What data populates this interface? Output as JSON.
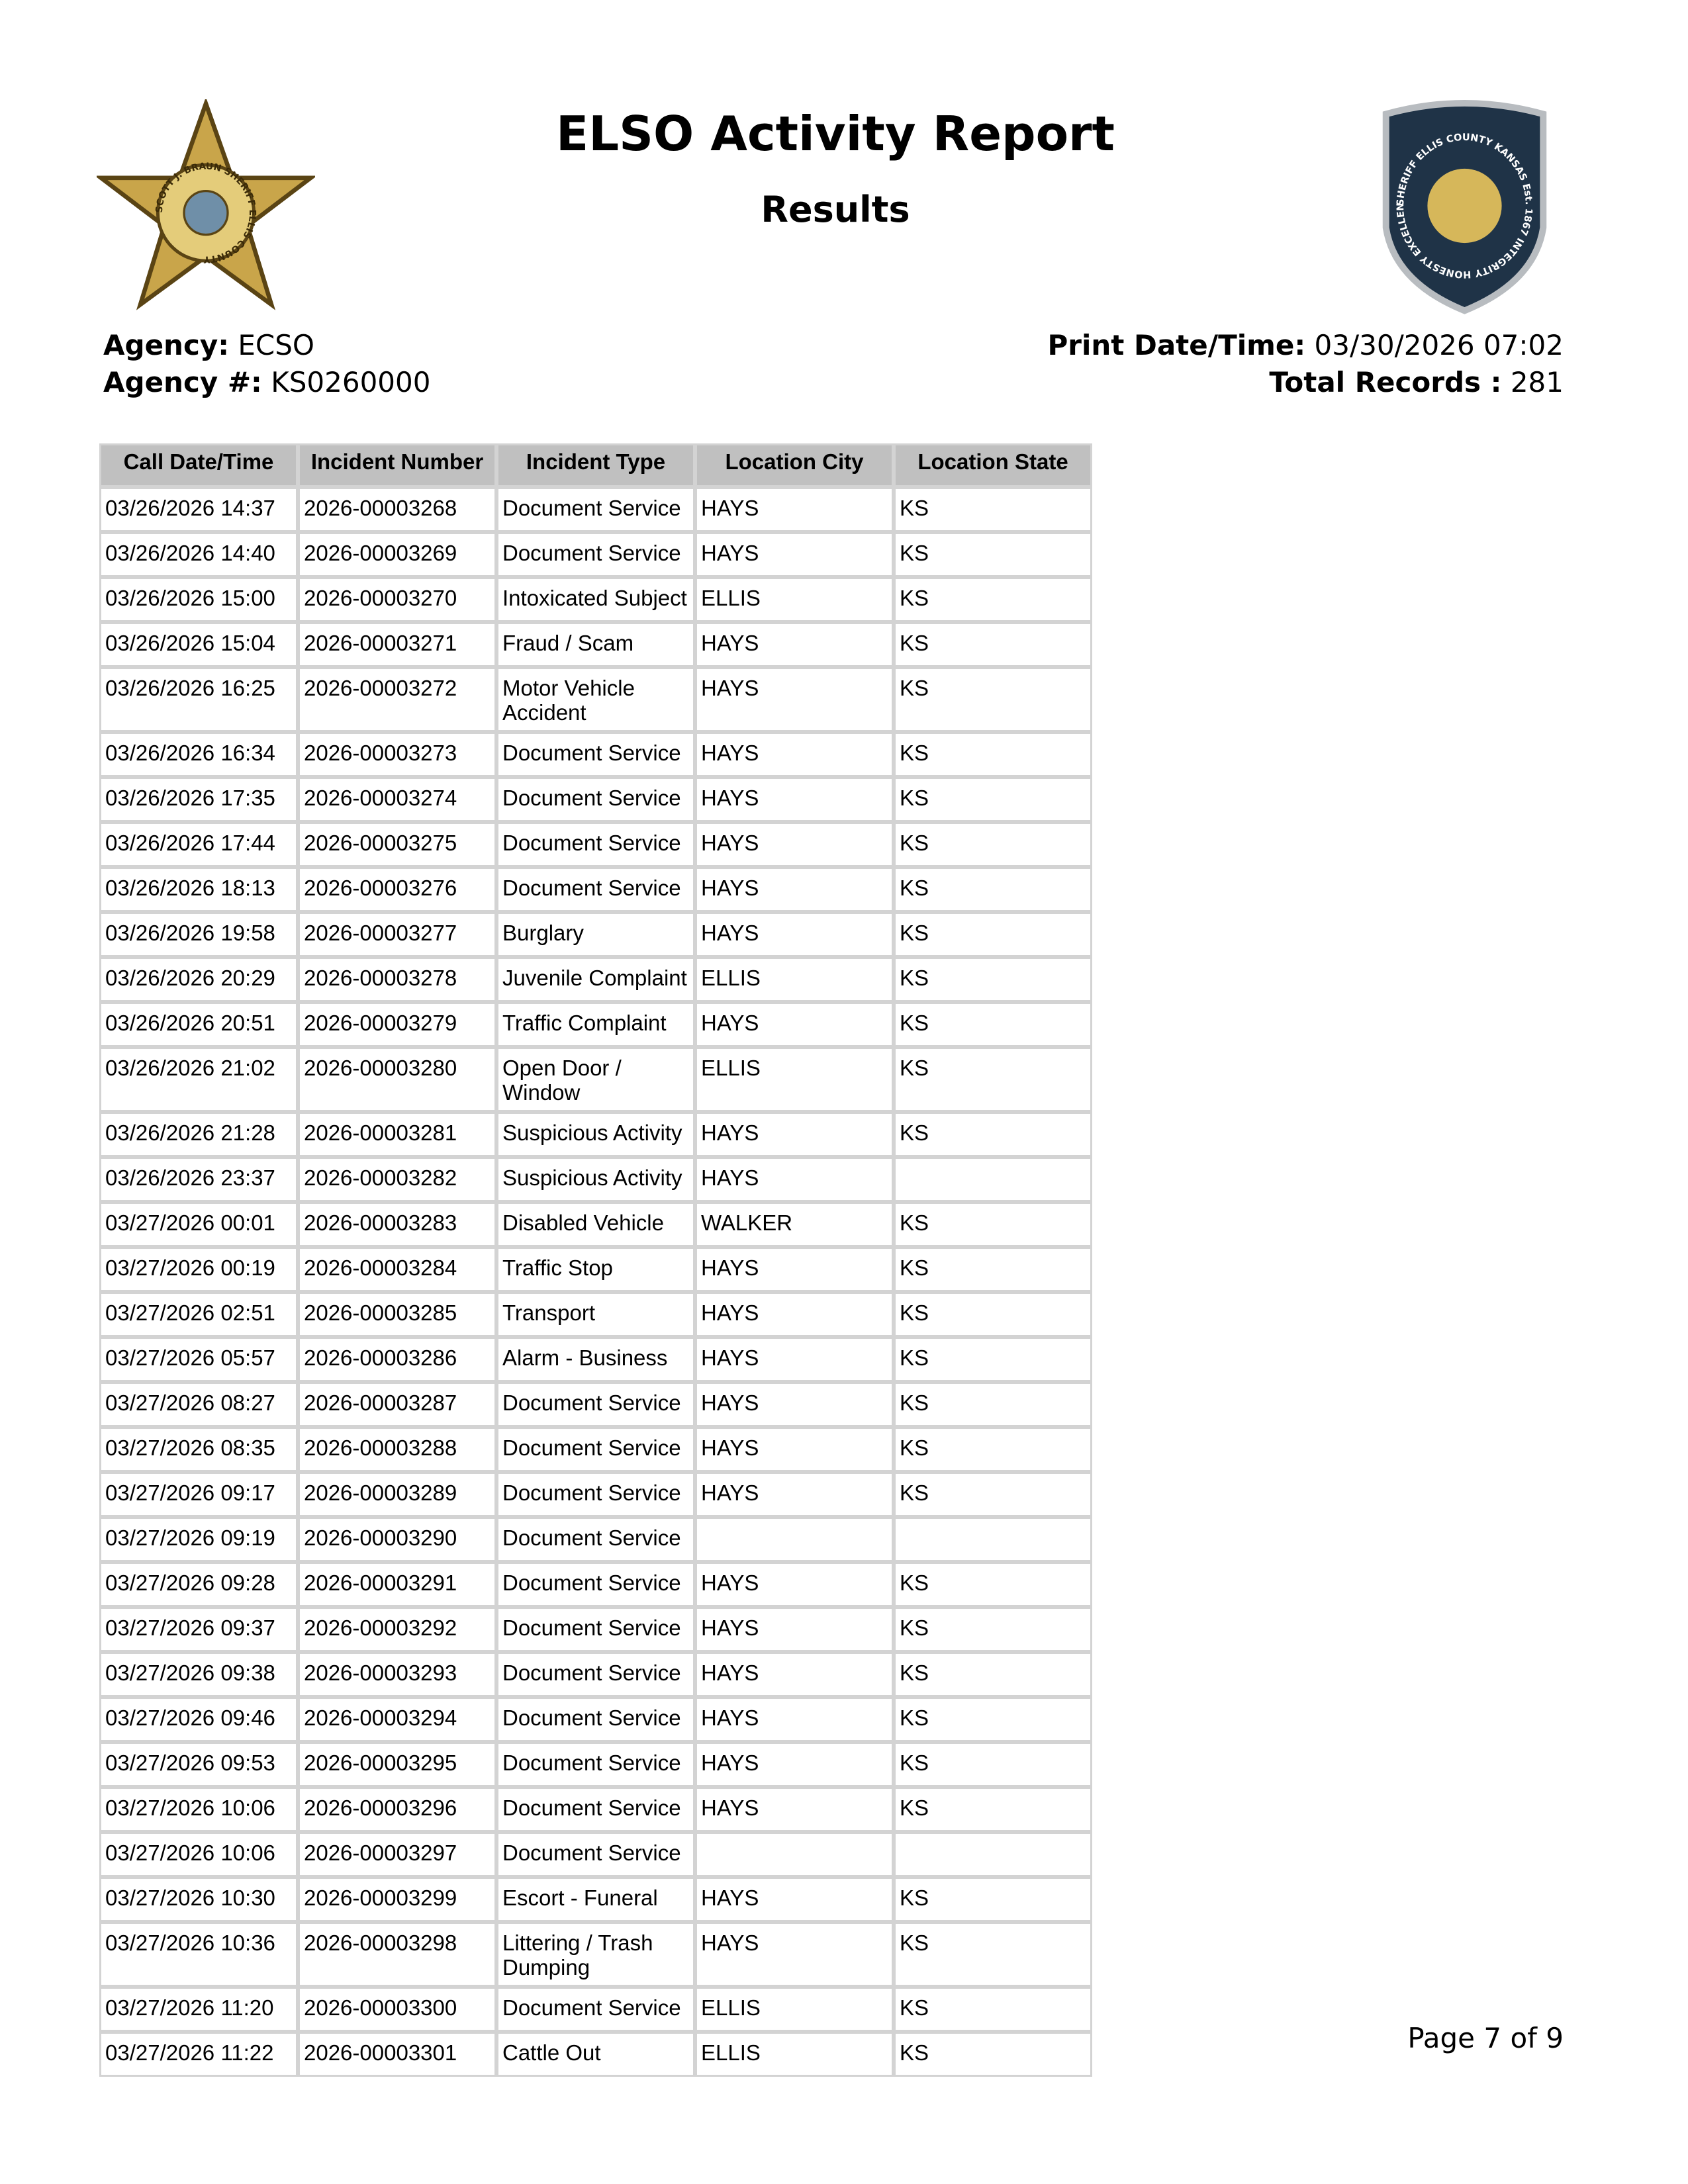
{
  "header": {
    "title": "ELSO Activity Report",
    "subtitle": "Results",
    "left_logo_text": "SCOTT J. BRAUN SHERIFF ELLIS COUNTY",
    "right_logo_text": "SHERIFF ELLIS COUNTY KANSAS Est. 1867 INTEGRITY HONESTY EXCELLENCE"
  },
  "meta": {
    "agency_label": "Agency:",
    "agency_value": "ECSO",
    "agency_num_label": "Agency #:",
    "agency_num_value": "KS0260000",
    "print_label": "Print Date/Time:",
    "print_value": "03/30/2026 07:02",
    "total_label": "Total Records :",
    "total_value": "281"
  },
  "table": {
    "columns": [
      "Call Date/Time",
      "Incident Number",
      "Incident Type",
      "Location City",
      "Location State"
    ],
    "rows": [
      [
        "03/26/2026 14:37",
        "2026-00003268",
        "Document Service",
        "HAYS",
        "KS"
      ],
      [
        "03/26/2026 14:40",
        "2026-00003269",
        "Document Service",
        "HAYS",
        "KS"
      ],
      [
        "03/26/2026 15:00",
        "2026-00003270",
        "Intoxicated Subject",
        "ELLIS",
        "KS"
      ],
      [
        "03/26/2026 15:04",
        "2026-00003271",
        "Fraud / Scam",
        "HAYS",
        "KS"
      ],
      [
        "03/26/2026 16:25",
        "2026-00003272",
        "Motor Vehicle Accident",
        "HAYS",
        "KS"
      ],
      [
        "03/26/2026 16:34",
        "2026-00003273",
        "Document Service",
        "HAYS",
        "KS"
      ],
      [
        "03/26/2026 17:35",
        "2026-00003274",
        "Document Service",
        "HAYS",
        "KS"
      ],
      [
        "03/26/2026 17:44",
        "2026-00003275",
        "Document Service",
        "HAYS",
        "KS"
      ],
      [
        "03/26/2026 18:13",
        "2026-00003276",
        "Document Service",
        "HAYS",
        "KS"
      ],
      [
        "03/26/2026 19:58",
        "2026-00003277",
        "Burglary",
        "HAYS",
        "KS"
      ],
      [
        "03/26/2026 20:29",
        "2026-00003278",
        "Juvenile Complaint",
        "ELLIS",
        "KS"
      ],
      [
        "03/26/2026 20:51",
        "2026-00003279",
        "Traffic Complaint",
        "HAYS",
        "KS"
      ],
      [
        "03/26/2026 21:02",
        "2026-00003280",
        "Open Door / Window",
        "ELLIS",
        "KS"
      ],
      [
        "03/26/2026 21:28",
        "2026-00003281",
        "Suspicious Activity",
        "HAYS",
        "KS"
      ],
      [
        "03/26/2026 23:37",
        "2026-00003282",
        "Suspicious Activity",
        "HAYS",
        ""
      ],
      [
        "03/27/2026 00:01",
        "2026-00003283",
        "Disabled Vehicle",
        "WALKER",
        "KS"
      ],
      [
        "03/27/2026 00:19",
        "2026-00003284",
        "Traffic Stop",
        "HAYS",
        "KS"
      ],
      [
        "03/27/2026 02:51",
        "2026-00003285",
        "Transport",
        "HAYS",
        "KS"
      ],
      [
        "03/27/2026 05:57",
        "2026-00003286",
        "Alarm - Business",
        "HAYS",
        "KS"
      ],
      [
        "03/27/2026 08:27",
        "2026-00003287",
        "Document Service",
        "HAYS",
        "KS"
      ],
      [
        "03/27/2026 08:35",
        "2026-00003288",
        "Document Service",
        "HAYS",
        "KS"
      ],
      [
        "03/27/2026 09:17",
        "2026-00003289",
        "Document Service",
        "HAYS",
        "KS"
      ],
      [
        "03/27/2026 09:19",
        "2026-00003290",
        "Document Service",
        "",
        ""
      ],
      [
        "03/27/2026 09:28",
        "2026-00003291",
        "Document Service",
        "HAYS",
        "KS"
      ],
      [
        "03/27/2026 09:37",
        "2026-00003292",
        "Document Service",
        "HAYS",
        "KS"
      ],
      [
        "03/27/2026 09:38",
        "2026-00003293",
        "Document Service",
        "HAYS",
        "KS"
      ],
      [
        "03/27/2026 09:46",
        "2026-00003294",
        "Document Service",
        "HAYS",
        "KS"
      ],
      [
        "03/27/2026 09:53",
        "2026-00003295",
        "Document Service",
        "HAYS",
        "KS"
      ],
      [
        "03/27/2026 10:06",
        "2026-00003296",
        "Document Service",
        "HAYS",
        "KS"
      ],
      [
        "03/27/2026 10:06",
        "2026-00003297",
        "Document Service",
        "",
        ""
      ],
      [
        "03/27/2026 10:30",
        "2026-00003299",
        "Escort - Funeral",
        "HAYS",
        "KS"
      ],
      [
        "03/27/2026 10:36",
        "2026-00003298",
        "Littering / Trash Dumping",
        "HAYS",
        "KS"
      ],
      [
        "03/27/2026 11:20",
        "2026-00003300",
        "Document Service",
        "ELLIS",
        "KS"
      ],
      [
        "03/27/2026 11:22",
        "2026-00003301",
        "Cattle Out",
        "ELLIS",
        "KS"
      ]
    ]
  },
  "footer": {
    "page": "Page 7 of 9"
  }
}
